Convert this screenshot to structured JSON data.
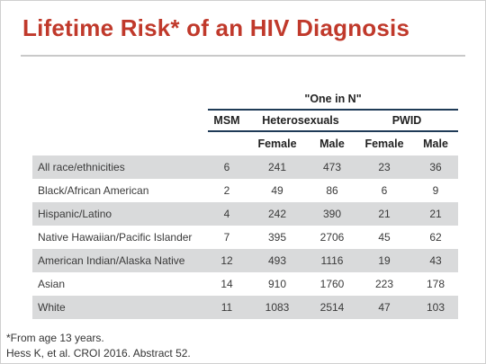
{
  "slide": {
    "title": "Lifetime Risk* of an HIV Diagnosis",
    "group_header": "\"One in N\"",
    "columns": {
      "msm": "MSM",
      "heterosexuals": "Heterosexuals",
      "pwid": "PWID",
      "female": "Female",
      "male": "Male"
    },
    "rows": [
      {
        "label": "All race/ethnicities",
        "msm": "6",
        "het_female": "241",
        "het_male": "473",
        "pwid_female": "23",
        "pwid_male": "36"
      },
      {
        "label": "Black/African American",
        "msm": "2",
        "het_female": "49",
        "het_male": "86",
        "pwid_female": "6",
        "pwid_male": "9"
      },
      {
        "label": "Hispanic/Latino",
        "msm": "4",
        "het_female": "242",
        "het_male": "390",
        "pwid_female": "21",
        "pwid_male": "21"
      },
      {
        "label": "Native Hawaiian/Pacific Islander",
        "msm": "7",
        "het_female": "395",
        "het_male": "2706",
        "pwid_female": "45",
        "pwid_male": "62"
      },
      {
        "label": "American Indian/Alaska Native",
        "msm": "12",
        "het_female": "493",
        "het_male": "1116",
        "pwid_female": "19",
        "pwid_male": "43"
      },
      {
        "label": "Asian",
        "msm": "14",
        "het_female": "910",
        "het_male": "1760",
        "pwid_female": "223",
        "pwid_male": "178"
      },
      {
        "label": "White",
        "msm": "11",
        "het_female": "1083",
        "het_male": "2514",
        "pwid_female": "47",
        "pwid_male": "103"
      }
    ],
    "footnote": "*From age 13 years.",
    "citation": "Hess K, et al. CROI 2016. Abstract 52."
  },
  "colors": {
    "title": "#c0392b",
    "header_rule": "#1f3b57",
    "shaded_row": "#d9dadb"
  }
}
